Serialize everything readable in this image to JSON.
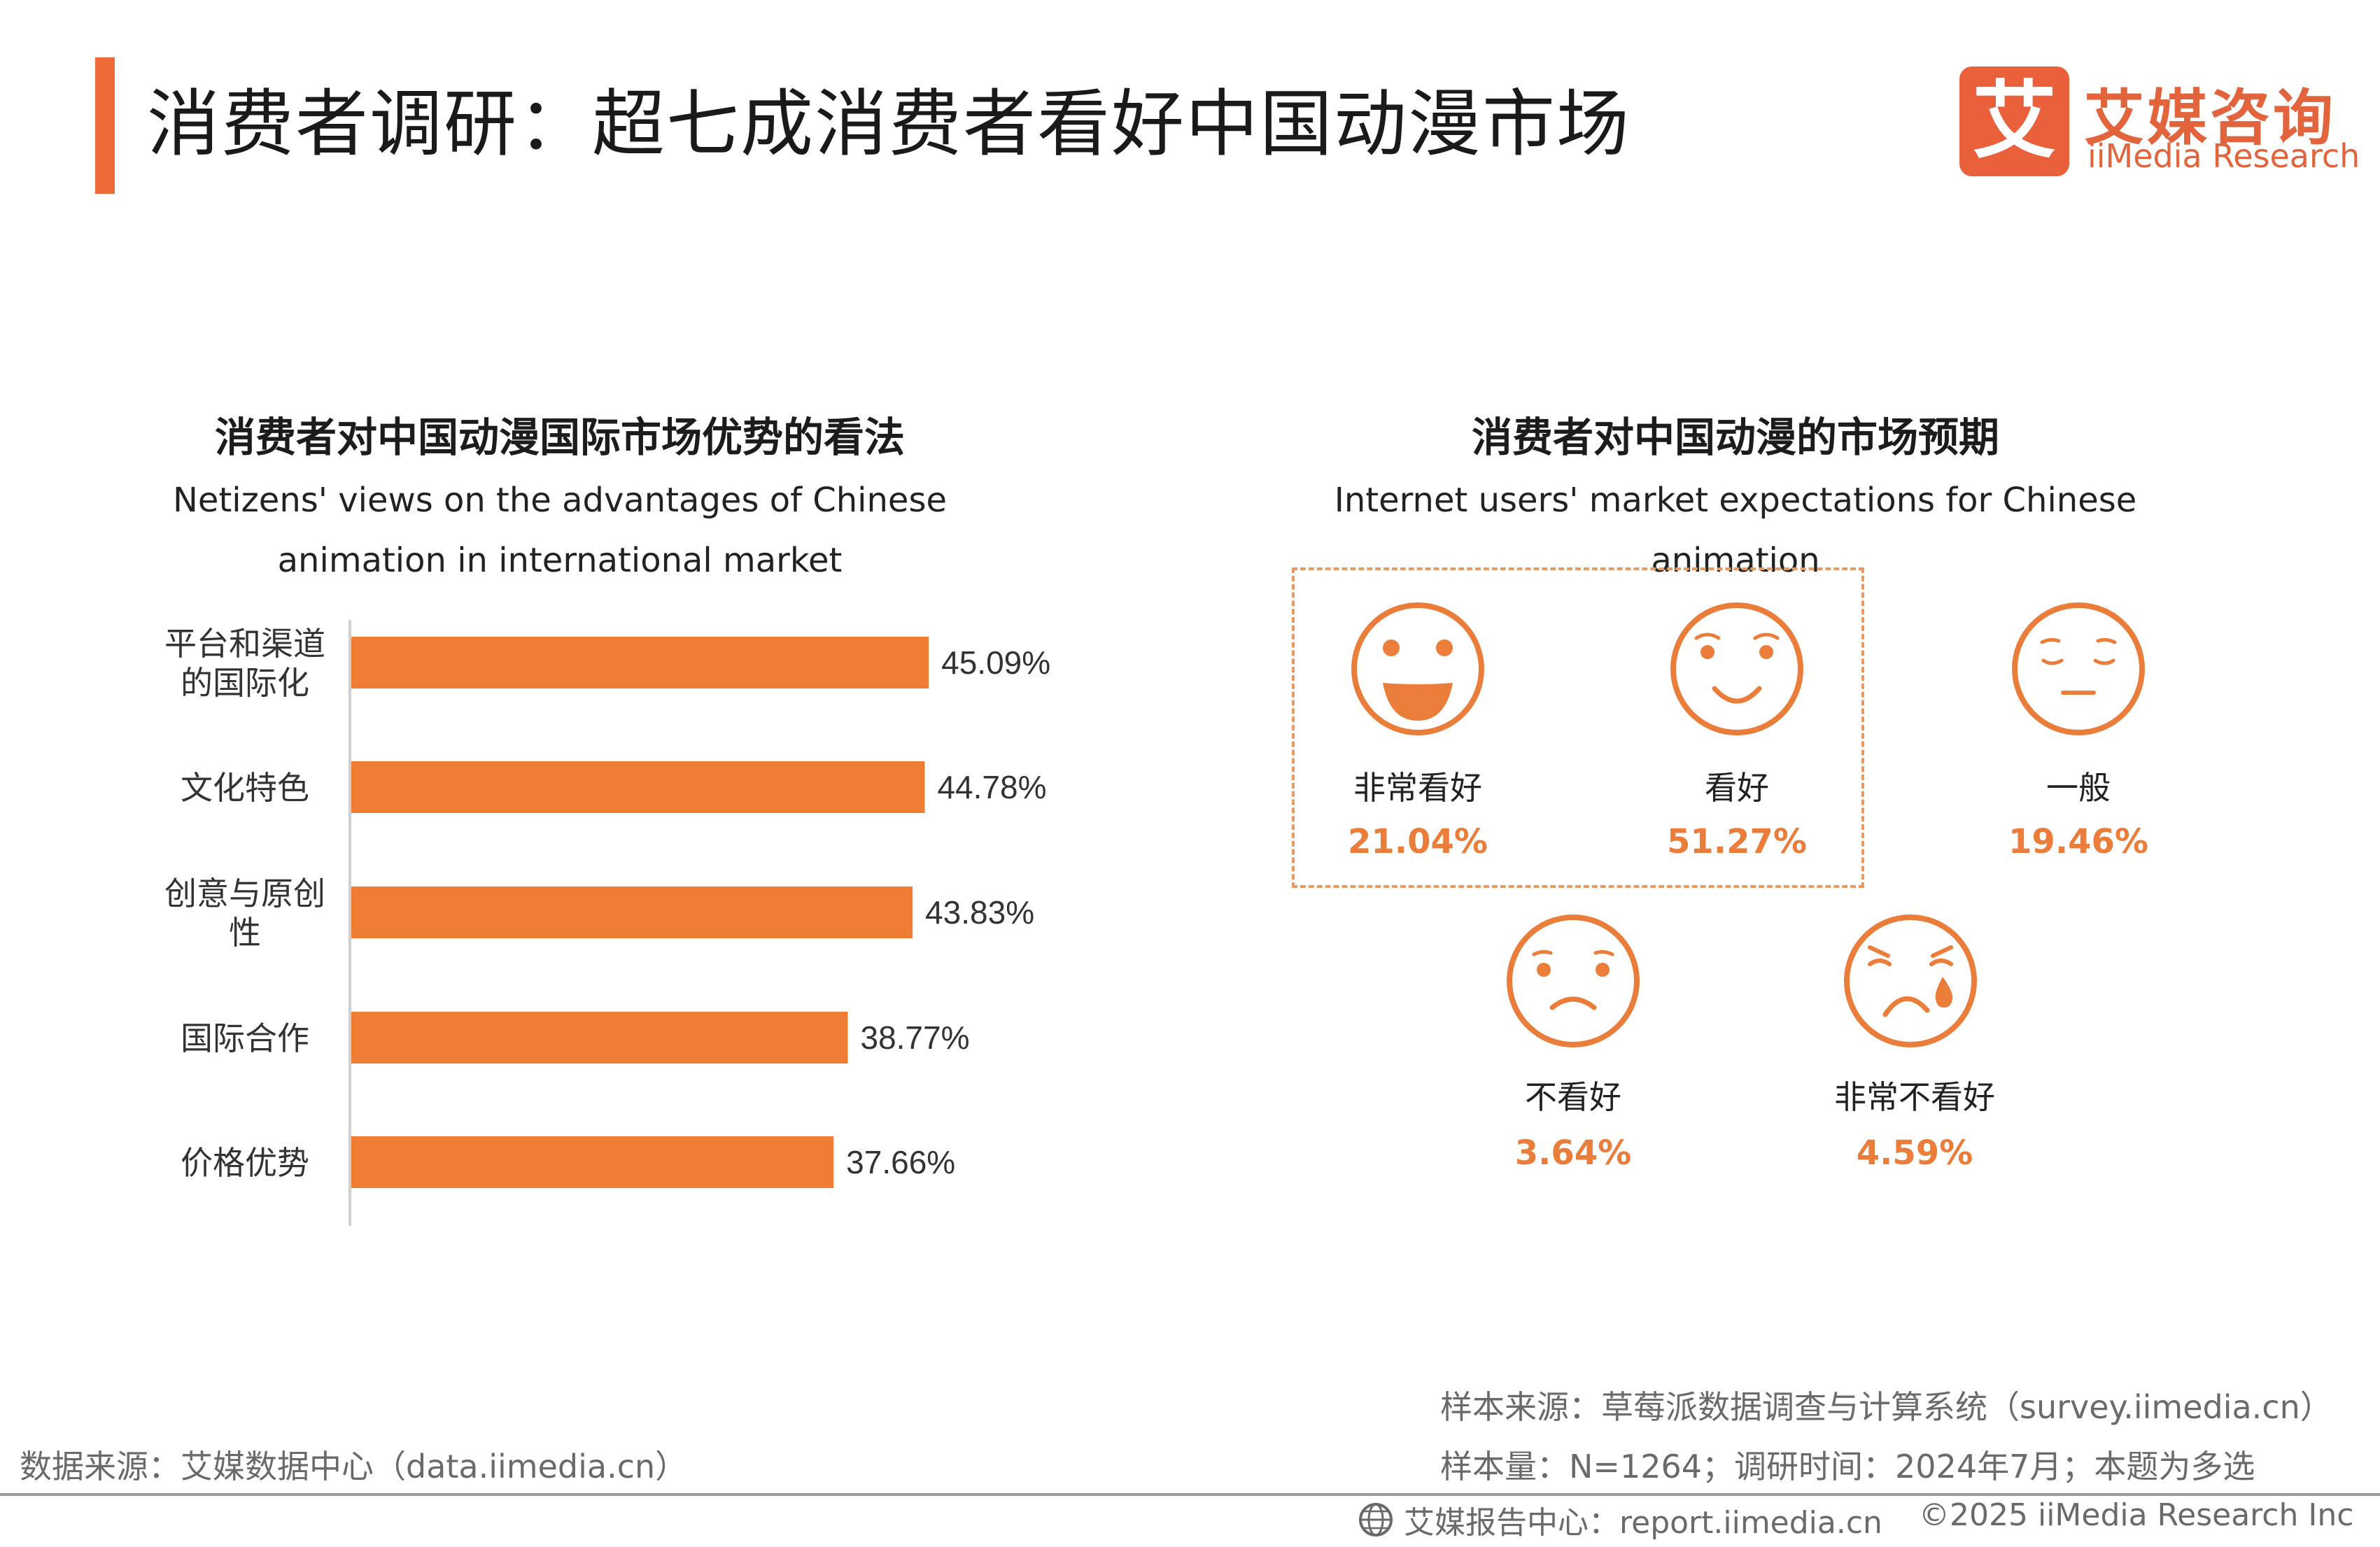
{
  "header": {
    "title": "消费者调研：超七成消费者看好中国动漫市场",
    "logo_mark": "艾",
    "logo_cn": "艾媒咨询",
    "logo_en": "iiMedia Research"
  },
  "left_section": {
    "title": "消费者对中国动漫国际市场优势的看法",
    "subtitle_line1": "Netizens' views on the advantages of Chinese",
    "subtitle_line2": "animation in international market"
  },
  "right_section": {
    "title": "消费者对中国动漫的市场预期",
    "subtitle": "Internet users' market expectations for Chinese animation",
    "faces": [
      {
        "label": "非常看好",
        "value": "21.04%",
        "icon": "big-smile-face-icon"
      },
      {
        "label": "看好",
        "value": "51.27%",
        "icon": "smile-face-icon"
      },
      {
        "label": "一般",
        "value": "19.46%",
        "icon": "neutral-face-icon"
      },
      {
        "label": "不看好",
        "value": "3.64%",
        "icon": "frown-face-icon"
      },
      {
        "label": "非常不看好",
        "value": "4.59%",
        "icon": "crying-face-icon"
      }
    ]
  },
  "chart_data": {
    "type": "bar",
    "orientation": "horizontal",
    "categories": [
      [
        "平台和渠道",
        "的国际化"
      ],
      [
        "文化特色"
      ],
      [
        "创意与原创",
        "性"
      ],
      [
        "国际合作"
      ],
      [
        "价格优势"
      ]
    ],
    "values": [
      45.09,
      44.78,
      43.83,
      38.77,
      37.66
    ],
    "value_labels": [
      "45.09%",
      "44.78%",
      "43.83%",
      "38.77%",
      "37.66%"
    ],
    "unit": "%",
    "xlim": [
      0,
      100
    ],
    "grid": false,
    "color": "#ee7d33"
  },
  "footer": {
    "source_left": "数据来源：艾媒数据中心（data.iimedia.cn）",
    "sample_source": "样本来源：草莓派数据调查与计算系统（survey.iimedia.cn）",
    "sample_size": "样本量：N=1264；调研时间：2024年7月；本题为多选",
    "report_center": "艾媒报告中心：report.iimedia.cn",
    "copyright": "©2025  iiMedia Research  Inc"
  },
  "colors": {
    "accent": "#ee6a38",
    "bar": "#ee7d33",
    "face": "#ea7d3a"
  }
}
